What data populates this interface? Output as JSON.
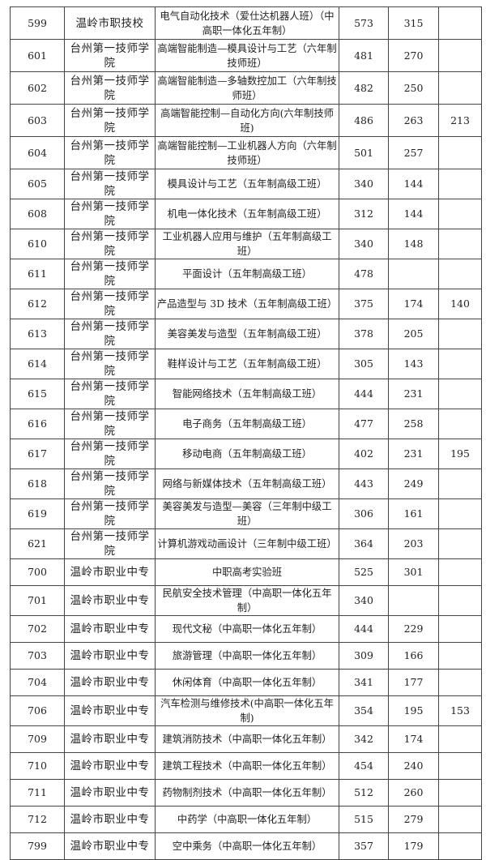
{
  "rows": [
    {
      "code": "599",
      "school": "温岭市职技校",
      "major": "电气自动化技术（爱仕达机器人班）（中高职一体化五年制）",
      "s1": "573",
      "s2": "315",
      "s3": ""
    },
    {
      "code": "601",
      "school": "台州第一技师学院",
      "major": "高端智能制造—模具设计与工艺（六年制技师班）",
      "s1": "481",
      "s2": "270",
      "s3": ""
    },
    {
      "code": "602",
      "school": "台州第一技师学院",
      "major": "高端智能制造—多轴数控加工（六年制技师班）",
      "s1": "482",
      "s2": "250",
      "s3": ""
    },
    {
      "code": "603",
      "school": "台州第一技师学院",
      "major": "高端智能控制—自动化方向(六年制技师班)",
      "s1": "486",
      "s2": "263",
      "s3": "213"
    },
    {
      "code": "604",
      "school": "台州第一技师学院",
      "major": "高端智能控制—工业机器人方向（六年制技师班）",
      "s1": "501",
      "s2": "257",
      "s3": ""
    },
    {
      "code": "605",
      "school": "台州第一技师学院",
      "major": "模具设计与工艺（五年制高级工班）",
      "s1": "340",
      "s2": "144",
      "s3": ""
    },
    {
      "code": "608",
      "school": "台州第一技师学院",
      "major": "机电一体化技术（五年制高级工班）",
      "s1": "312",
      "s2": "144",
      "s3": ""
    },
    {
      "code": "610",
      "school": "台州第一技师学院",
      "major": "工业机器人应用与维护（五年制高级工班）",
      "s1": "340",
      "s2": "148",
      "s3": ""
    },
    {
      "code": "611",
      "school": "台州第一技师学院",
      "major": "平面设计（五年制高级工班）",
      "s1": "478",
      "s2": "",
      "s3": ""
    },
    {
      "code": "612",
      "school": "台州第一技师学院",
      "major": "产品造型与 3D 技术（五年制高级工班）",
      "s1": "375",
      "s2": "174",
      "s3": "140"
    },
    {
      "code": "613",
      "school": "台州第一技师学院",
      "major": "美容美发与造型（五年制高级工班）",
      "s1": "378",
      "s2": "205",
      "s3": ""
    },
    {
      "code": "614",
      "school": "台州第一技师学院",
      "major": "鞋样设计与工艺（五年制高级工班）",
      "s1": "305",
      "s2": "143",
      "s3": ""
    },
    {
      "code": "615",
      "school": "台州第一技师学院",
      "major": "智能网络技术（五年制高级工班）",
      "s1": "444",
      "s2": "231",
      "s3": ""
    },
    {
      "code": "616",
      "school": "台州第一技师学院",
      "major": "电子商务（五年制高级工班）",
      "s1": "477",
      "s2": "258",
      "s3": ""
    },
    {
      "code": "617",
      "school": "台州第一技师学院",
      "major": "移动电商（五年制高级工班）",
      "s1": "402",
      "s2": "231",
      "s3": "195"
    },
    {
      "code": "618",
      "school": "台州第一技师学院",
      "major": "网络与新媒体技术（五年制高级工班）",
      "s1": "443",
      "s2": "249",
      "s3": ""
    },
    {
      "code": "619",
      "school": "台州第一技师学院",
      "major": "美容美发与造型—美容（三年制中级工班）",
      "s1": "306",
      "s2": "161",
      "s3": ""
    },
    {
      "code": "621",
      "school": "台州第一技师学院",
      "major": "计算机游戏动画设计（三年制中级工班）",
      "s1": "364",
      "s2": "203",
      "s3": ""
    },
    {
      "code": "700",
      "school": "温岭市职业中专",
      "major": "中职高考实验班",
      "s1": "525",
      "s2": "301",
      "s3": ""
    },
    {
      "code": "701",
      "school": "温岭市职业中专",
      "major": "民航安全技术管理（中高职一体化五年制）",
      "s1": "340",
      "s2": "",
      "s3": ""
    },
    {
      "code": "702",
      "school": "温岭市职业中专",
      "major": "现代文秘（中高职一体化五年制）",
      "s1": "444",
      "s2": "229",
      "s3": ""
    },
    {
      "code": "703",
      "school": "温岭市职业中专",
      "major": "旅游管理（中高职一体化五年制）",
      "s1": "309",
      "s2": "166",
      "s3": ""
    },
    {
      "code": "704",
      "school": "温岭市职业中专",
      "major": "休闲体育（中高职一体化五年制）",
      "s1": "341",
      "s2": "177",
      "s3": ""
    },
    {
      "code": "706",
      "school": "温岭市职业中专",
      "major": "汽车检测与维修技术(中高职一体化五年制)",
      "s1": "354",
      "s2": "195",
      "s3": "153"
    },
    {
      "code": "709",
      "school": "温岭市职业中专",
      "major": "建筑消防技术（中高职一体化五年制）",
      "s1": "342",
      "s2": "174",
      "s3": ""
    },
    {
      "code": "710",
      "school": "温岭市职业中专",
      "major": "建筑工程技术（中高职一体化五年制）",
      "s1": "454",
      "s2": "240",
      "s3": ""
    },
    {
      "code": "711",
      "school": "温岭市职业中专",
      "major": "药物制剂技术（中高职一体化五年制）",
      "s1": "512",
      "s2": "260",
      "s3": ""
    },
    {
      "code": "712",
      "school": "温岭市职业中专",
      "major": "中药学（中高职一体化五年制）",
      "s1": "515",
      "s2": "279",
      "s3": ""
    },
    {
      "code": "799",
      "school": "温岭市职业中专",
      "major": "空中乘务（中高职一体化五年制）",
      "s1": "357",
      "s2": "179",
      "s3": ""
    }
  ]
}
